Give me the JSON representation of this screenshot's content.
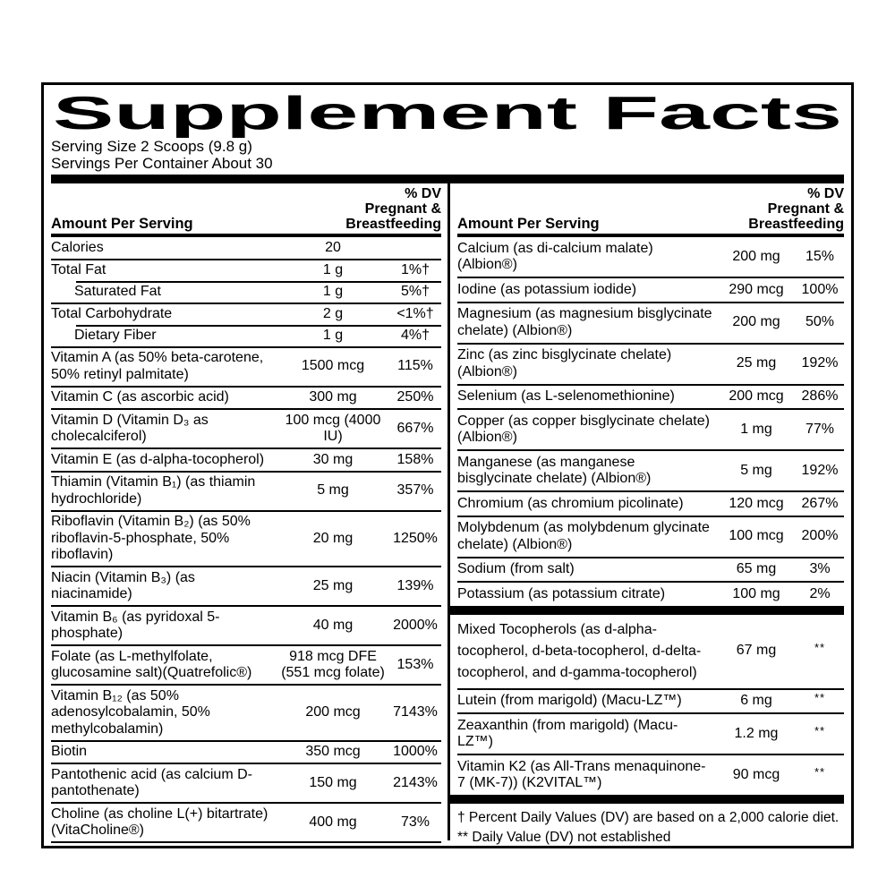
{
  "title": "Supplement Facts",
  "serving": {
    "size": "Serving Size 2 Scoops (9.8 g)",
    "per_container": "Servings Per Container About 30"
  },
  "column_header": {
    "amount": "Amount Per Serving",
    "dv": "% DV\nPregnant &\nBreastfeeding"
  },
  "tables": {
    "left": {
      "rows": [
        {
          "name": "Calories",
          "amount": "20",
          "dv": ""
        },
        {
          "name": "Total Fat",
          "amount": "1 g",
          "dv": "1%†"
        },
        {
          "name": "Saturated Fat",
          "amount": "1 g",
          "dv": "5%†",
          "indent": true
        },
        {
          "name": "Total Carbohydrate",
          "amount": "2 g",
          "dv": "<1%†"
        },
        {
          "name": "Dietary Fiber",
          "amount": "1 g",
          "dv": "4%†",
          "indent": true
        },
        {
          "name": "Vitamin A (as 50% beta-carotene, 50% retinyl palmitate)",
          "amount": "1500 mcg",
          "dv": "115%"
        },
        {
          "name": "Vitamin C (as ascorbic acid)",
          "amount": "300 mg",
          "dv": "250%"
        },
        {
          "name": "Vitamin D (Vitamin D₃ as cholecalciferol)",
          "amount": "100 mcg (4000 IU)",
          "dv": "667%"
        },
        {
          "name": "Vitamin E (as d-alpha-tocopherol)",
          "amount": "30 mg",
          "dv": "158%"
        },
        {
          "name": "Thiamin (Vitamin B₁) (as thiamin hydrochloride)",
          "amount": "5 mg",
          "dv": "357%"
        },
        {
          "name": "Riboflavin (Vitamin B₂) (as 50% riboflavin-5-phosphate, 50% riboflavin)",
          "amount": "20 mg",
          "dv": "1250%"
        },
        {
          "name": "Niacin (Vitamin B₃) (as niacinamide)",
          "amount": "25 mg",
          "dv": "139%"
        },
        {
          "name": "Vitamin B₆ (as pyridoxal 5-phosphate)",
          "amount": "40 mg",
          "dv": "2000%"
        },
        {
          "name": "Folate (as L-methylfolate, glucosamine salt)(Quatrefolic®)",
          "amount": "918 mcg DFE (551 mcg folate)",
          "dv": "153%"
        },
        {
          "name": "Vitamin B₁₂ (as 50% adenosylcobalamin, 50% methylcobalamin)",
          "amount": "200 mcg",
          "dv": "7143%"
        },
        {
          "name": "Biotin",
          "amount": "350 mcg",
          "dv": "1000%"
        },
        {
          "name": "Pantothenic acid (as calcium D-pantothenate)",
          "amount": "150 mg",
          "dv": "2143%"
        },
        {
          "name": "Choline (as choline L(+) bitartrate) (VitaCholine®)",
          "amount": "400 mg",
          "dv": "73%"
        }
      ]
    },
    "right_main": {
      "rows": [
        {
          "name": "Calcium (as di-calcium malate) (Albion®)",
          "amount": "200 mg",
          "dv": "15%"
        },
        {
          "name": "Iodine (as potassium iodide)",
          "amount": "290 mcg",
          "dv": "100%"
        },
        {
          "name": "Magnesium (as magnesium bisglycinate chelate) (Albion®)",
          "amount": "200 mg",
          "dv": "50%"
        },
        {
          "name": "Zinc (as zinc bisglycinate chelate) (Albion®)",
          "amount": "25 mg",
          "dv": "192%"
        },
        {
          "name": "Selenium (as L-selenomethionine)",
          "amount": "200 mcg",
          "dv": "286%"
        },
        {
          "name": "Copper (as copper bisglycinate chelate) (Albion®)",
          "amount": "1 mg",
          "dv": "77%"
        },
        {
          "name": "Manganese (as manganese bisglycinate chelate) (Albion®)",
          "amount": "5 mg",
          "dv": "192%"
        },
        {
          "name": "Chromium (as chromium picolinate)",
          "amount": "120 mcg",
          "dv": "267%"
        },
        {
          "name": "Molybdenum (as molybdenum glycinate chelate) (Albion®)",
          "amount": "100 mcg",
          "dv": "200%"
        },
        {
          "name": "Sodium (from salt)",
          "amount": "65 mg",
          "dv": "3%"
        },
        {
          "name": "Potassium (as potassium citrate)",
          "amount": "100 mg",
          "dv": "2%"
        }
      ]
    },
    "right_unestablished": {
      "rows": [
        {
          "name": "Mixed Tocopherols (as d-alpha-tocopherol, d-beta-tocopherol, d-delta-tocopherol, and d-gamma-tocopherol)",
          "amount": "67 mg",
          "dv": "**",
          "loose": true
        },
        {
          "name": "Lutein (from marigold) (Macu-LZ™)",
          "amount": "6 mg",
          "dv": "**"
        },
        {
          "name": "Zeaxanthin (from marigold) (Macu-LZ™)",
          "amount": "1.2 mg",
          "dv": "**"
        },
        {
          "name": "Vitamin K2 (as All-Trans menaquinone-7 (MK-7)) (K2VITAL™)",
          "amount": "90 mcg",
          "dv": "**"
        }
      ]
    }
  },
  "footnotes": {
    "daily_value": "† Percent Daily Values (DV) are based on a 2,000 calorie diet.",
    "not_established": "** Daily Value (DV) not established"
  },
  "colors": {
    "ink": "#000000",
    "background": "#ffffff"
  }
}
